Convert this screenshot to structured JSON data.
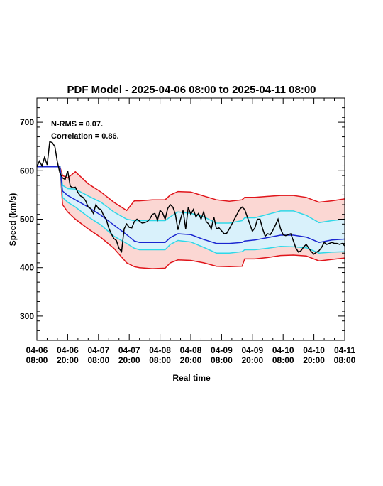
{
  "chart_data": {
    "type": "line",
    "title": "PDF Model - 2025-04-06 08:00 to 2025-04-11 08:00",
    "xlabel": "Real time",
    "ylabel": "Speed (km/s)",
    "ylim": [
      250,
      750
    ],
    "xlim_hours": [
      0,
      120
    ],
    "yticks": [
      300,
      400,
      500,
      600,
      700
    ],
    "ytick_labels": [
      "300",
      "400",
      "500",
      "600",
      "700"
    ],
    "xticks_hours": [
      0,
      12,
      24,
      36,
      48,
      60,
      72,
      84,
      96,
      108,
      120
    ],
    "xtick_labels": [
      [
        "04-06",
        "08:00"
      ],
      [
        "04-06",
        "20:00"
      ],
      [
        "04-07",
        "08:00"
      ],
      [
        "04-07",
        "20:00"
      ],
      [
        "04-08",
        "08:00"
      ],
      [
        "04-08",
        "20:00"
      ],
      [
        "04-09",
        "08:00"
      ],
      [
        "04-09",
        "20:00"
      ],
      [
        "04-10",
        "08:00"
      ],
      [
        "04-10",
        "20:00"
      ],
      [
        "04-11",
        "08:00"
      ]
    ],
    "annotations": [
      "N-RMS = 0.07.",
      "Correlation = 0.86."
    ],
    "grid": false,
    "colors": {
      "outer_band_fill": "#fbd7d3",
      "outer_band_line": "#e0141a",
      "inner_band_fill": "#d9f1fb",
      "inner_band_line": "#2ed8e8",
      "median": "#1a25d0",
      "observed": "#000000"
    },
    "band_x": [
      0,
      9,
      10,
      12,
      15,
      20,
      25,
      30,
      35,
      38,
      40,
      45,
      50,
      52,
      55,
      60,
      65,
      70,
      75,
      80,
      81,
      85,
      90,
      95,
      100,
      105,
      110,
      115,
      120
    ],
    "band_outer_upper": [
      608,
      608,
      590,
      585,
      598,
      573,
      556,
      535,
      518,
      538,
      538,
      540,
      540,
      550,
      557,
      556,
      548,
      540,
      537,
      540,
      545,
      545,
      547,
      549,
      549,
      545,
      535,
      538,
      542
    ],
    "band_inner_upper": [
      608,
      608,
      570,
      563,
      562,
      548,
      535,
      515,
      500,
      497,
      497,
      497,
      497,
      505,
      515,
      512,
      505,
      492,
      492,
      497,
      503,
      503,
      510,
      517,
      517,
      508,
      493,
      497,
      500
    ],
    "median": [
      608,
      608,
      558,
      549,
      540,
      525,
      508,
      488,
      468,
      455,
      452,
      452,
      452,
      462,
      470,
      468,
      458,
      450,
      450,
      452,
      455,
      457,
      462,
      467,
      467,
      463,
      452,
      457,
      459
    ],
    "band_inner_lower": [
      608,
      608,
      545,
      535,
      525,
      505,
      488,
      465,
      450,
      440,
      437,
      437,
      437,
      448,
      456,
      453,
      442,
      430,
      430,
      433,
      437,
      437,
      440,
      444,
      443,
      441,
      430,
      432,
      433
    ],
    "band_outer_lower": [
      608,
      608,
      530,
      515,
      500,
      480,
      462,
      440,
      410,
      402,
      400,
      398,
      399,
      410,
      416,
      415,
      410,
      403,
      402,
      403,
      418,
      418,
      421,
      425,
      426,
      424,
      414,
      417,
      420
    ],
    "observed_x": [
      0,
      1,
      2,
      3,
      4,
      5,
      6,
      7,
      8,
      9,
      10,
      11,
      12,
      13,
      14,
      15,
      16,
      17,
      18,
      19,
      20,
      21,
      22,
      23,
      24,
      25,
      26,
      27,
      28,
      29,
      30,
      31,
      32,
      33,
      34,
      35,
      36,
      37,
      38,
      39,
      40,
      41,
      42,
      43,
      44,
      45,
      46,
      47,
      48,
      49,
      50,
      51,
      52,
      53,
      54,
      55,
      56,
      57,
      58,
      59,
      60,
      61,
      62,
      63,
      64,
      65,
      66,
      67,
      68,
      69,
      70,
      71,
      72,
      73,
      74,
      75,
      76,
      77,
      78,
      79,
      80,
      81,
      82,
      83,
      84,
      85,
      86,
      87,
      88,
      89,
      90,
      91,
      92,
      93,
      94,
      95,
      96,
      97,
      98,
      99,
      100,
      101,
      102,
      103,
      104,
      105,
      106,
      107,
      108,
      109,
      110,
      111,
      112,
      113,
      114,
      115,
      116,
      117,
      118,
      119,
      120
    ],
    "observed": [
      608,
      620,
      610,
      628,
      612,
      660,
      658,
      650,
      618,
      595,
      585,
      582,
      600,
      568,
      565,
      566,
      555,
      548,
      545,
      538,
      525,
      522,
      512,
      530,
      522,
      520,
      508,
      500,
      482,
      470,
      460,
      456,
      440,
      433,
      480,
      490,
      483,
      482,
      495,
      500,
      496,
      492,
      493,
      495,
      500,
      510,
      512,
      498,
      518,
      513,
      500,
      522,
      530,
      525,
      510,
      478,
      500,
      518,
      480,
      525,
      510,
      520,
      505,
      512,
      500,
      515,
      495,
      490,
      480,
      505,
      480,
      482,
      476,
      470,
      471,
      480,
      490,
      500,
      510,
      520,
      525,
      520,
      505,
      490,
      475,
      482,
      500,
      500,
      480,
      465,
      470,
      468,
      477,
      488,
      500,
      480,
      468,
      466,
      468,
      470,
      455,
      440,
      432,
      435,
      443,
      448,
      440,
      433,
      428,
      432,
      435,
      442,
      452,
      448,
      450,
      452,
      450,
      450,
      448,
      450,
      445
    ]
  }
}
